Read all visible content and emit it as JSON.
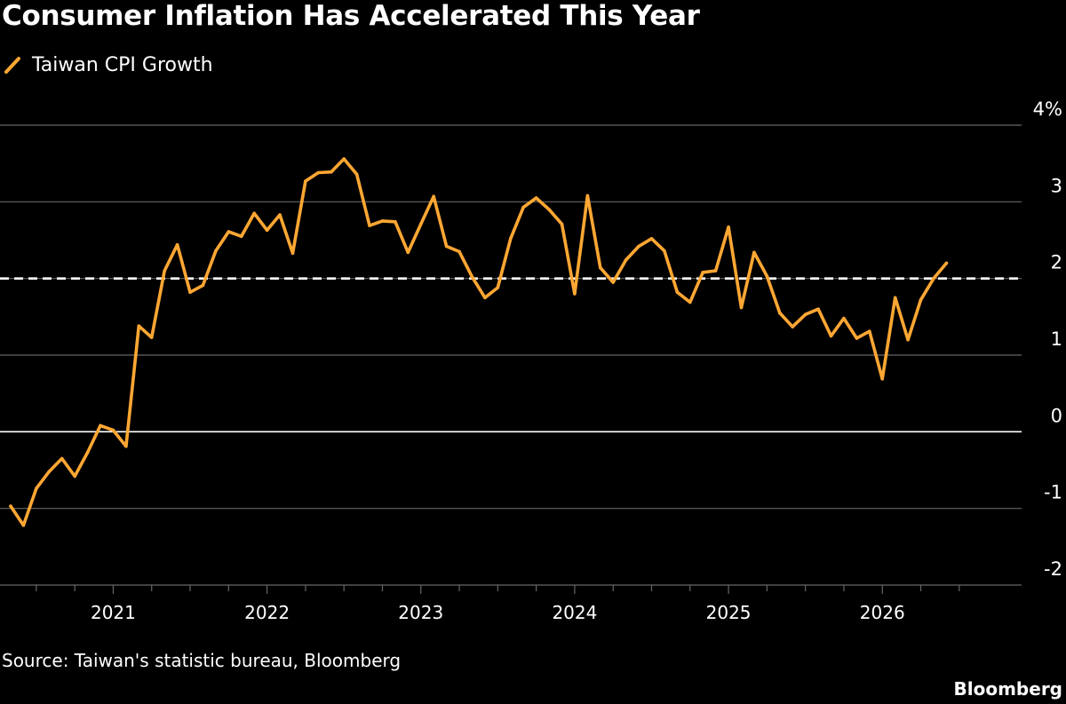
{
  "header": {
    "title": "Consumer Inflation Has Accelerated This Year"
  },
  "legend": {
    "label": "Taiwan CPI Growth",
    "icon": "line-swatch-icon"
  },
  "footer": {
    "source": "Source: Taiwan's statistic bureau, Bloomberg",
    "brand": "Bloomberg"
  },
  "colors": {
    "background": "#000000",
    "series": "#ffa733",
    "grid": "#666666",
    "zero_line": "#ffffff",
    "reference_line": "#ffffff",
    "text": "#ffffff"
  },
  "chart_data": {
    "type": "line",
    "title": "Consumer Inflation Has Accelerated This Year",
    "ylabel": "",
    "xlabel": "",
    "ylim": [
      -2,
      4
    ],
    "y_ticks": [
      -2,
      -1,
      0,
      1,
      2,
      3,
      4
    ],
    "y_tick_labels": [
      "-2",
      "-1",
      "0",
      "1",
      "2",
      "3",
      "4%"
    ],
    "x_tick_labels": [
      "2021",
      "2022",
      "2023",
      "2024",
      "2025",
      "2026"
    ],
    "x_tick_years": [
      2021,
      2022,
      2023,
      2024,
      2025,
      2026
    ],
    "x_start": "2020-05",
    "x_end": "2026-06",
    "grid": true,
    "legend_position": "top-left",
    "reference_line": {
      "y": 2,
      "style": "dashed"
    },
    "series": [
      {
        "name": "Taiwan CPI Growth",
        "x": [
          "2020-05",
          "2020-06",
          "2020-07",
          "2020-08",
          "2020-09",
          "2020-10",
          "2020-11",
          "2020-12",
          "2021-01",
          "2021-02",
          "2021-03",
          "2021-04",
          "2021-05",
          "2021-06",
          "2021-07",
          "2021-08",
          "2021-09",
          "2021-10",
          "2021-11",
          "2021-12",
          "2022-01",
          "2022-02",
          "2022-03",
          "2022-04",
          "2022-05",
          "2022-06",
          "2022-07",
          "2022-08",
          "2022-09",
          "2022-10",
          "2022-11",
          "2022-12",
          "2023-01",
          "2023-02",
          "2023-03",
          "2023-04",
          "2023-05",
          "2023-06",
          "2023-07",
          "2023-08",
          "2023-09",
          "2023-10",
          "2023-11",
          "2023-12",
          "2024-01",
          "2024-02",
          "2024-03",
          "2024-04",
          "2024-05",
          "2024-06",
          "2024-07",
          "2024-08",
          "2024-09",
          "2024-10",
          "2024-11",
          "2024-12",
          "2025-01",
          "2025-02",
          "2025-03",
          "2025-04",
          "2025-05",
          "2025-06",
          "2025-07",
          "2025-08",
          "2025-09",
          "2025-10",
          "2025-11",
          "2025-12",
          "2026-01",
          "2026-02",
          "2026-03",
          "2026-04",
          "2026-05",
          "2026-06"
        ],
        "values": [
          -0.97,
          -1.22,
          -0.74,
          -0.52,
          -0.35,
          -0.58,
          -0.27,
          0.08,
          0.02,
          -0.19,
          1.38,
          1.23,
          2.1,
          2.44,
          1.82,
          1.91,
          2.36,
          2.61,
          2.55,
          2.85,
          2.63,
          2.83,
          2.33,
          3.27,
          3.38,
          3.39,
          3.56,
          3.36,
          2.69,
          2.75,
          2.74,
          2.34,
          2.71,
          3.07,
          2.42,
          2.35,
          2.02,
          1.75,
          1.88,
          2.52,
          2.93,
          3.05,
          2.9,
          2.71,
          1.8,
          3.08,
          2.14,
          1.95,
          2.24,
          2.42,
          2.52,
          2.36,
          1.82,
          1.69,
          2.08,
          2.1,
          2.67,
          1.62,
          2.34,
          2.03,
          1.55,
          1.37,
          1.53,
          1.6,
          1.25,
          1.48,
          1.22,
          1.31,
          0.69,
          1.75,
          1.2,
          1.72,
          2.0,
          2.2
        ]
      }
    ]
  }
}
